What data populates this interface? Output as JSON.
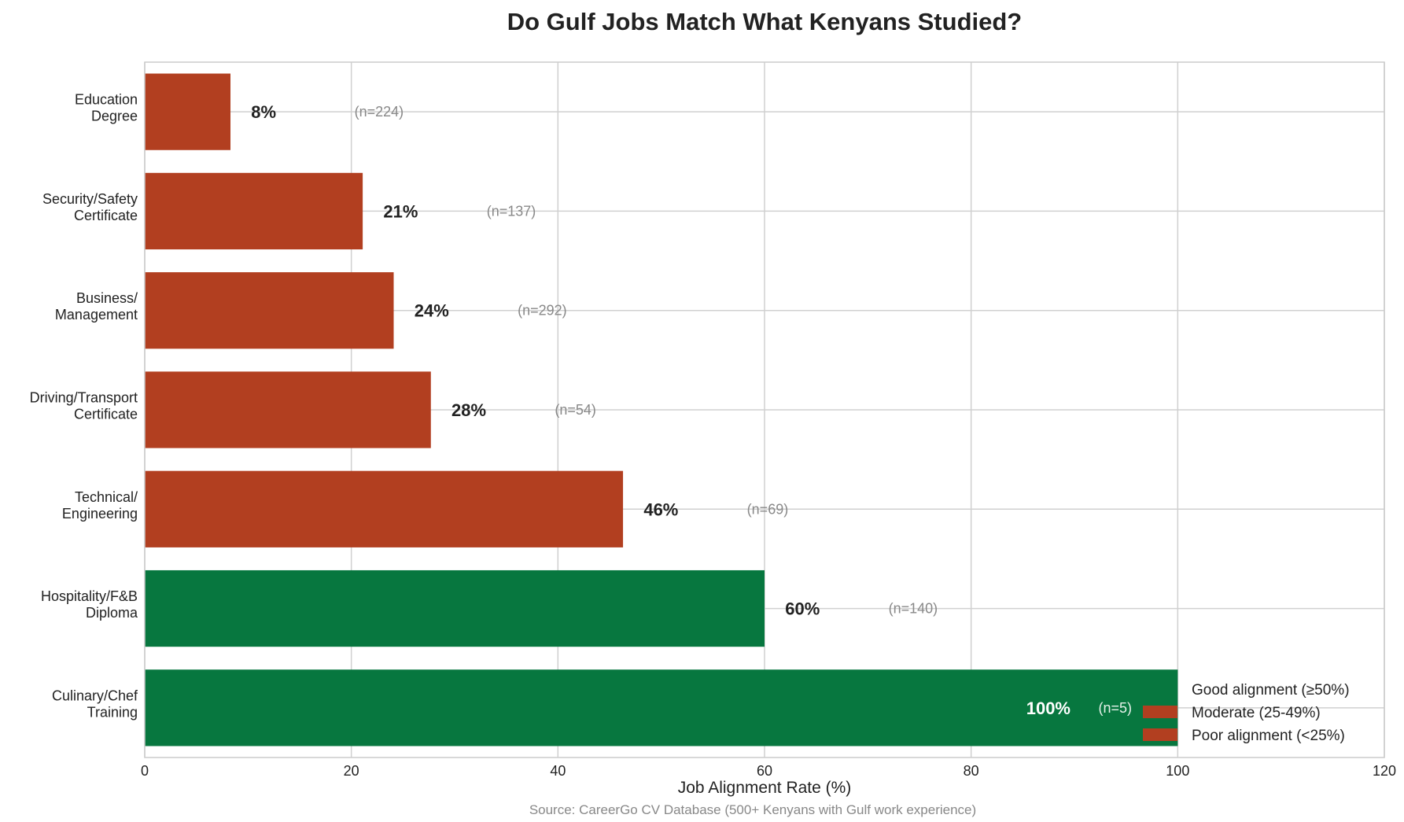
{
  "chart_data": {
    "type": "bar",
    "orientation": "horizontal",
    "title": "Do Gulf Jobs Match What Kenyans Studied?",
    "xlabel": "Job Alignment Rate (%)",
    "ylabel": "",
    "xlim": [
      0,
      120
    ],
    "xticks": [
      "0",
      "20",
      "40",
      "60",
      "80",
      "100",
      "120"
    ],
    "grid": true,
    "categories": [
      [
        "Education",
        "Degree"
      ],
      [
        "Security/Safety",
        "Certificate"
      ],
      [
        "Business/",
        "Management"
      ],
      [
        "Driving/Transport",
        "Certificate"
      ],
      [
        "Technical/",
        "Engineering"
      ],
      [
        "Hospitality/F&B",
        "Diploma"
      ],
      [
        "Culinary/Chef",
        "Training"
      ]
    ],
    "values": [
      8.3,
      21.1,
      24.1,
      27.7,
      46.3,
      60,
      100
    ],
    "value_labels": [
      "8%",
      "21%",
      "24%",
      "28%",
      "46%",
      "60%",
      "100%"
    ],
    "n_labels": [
      "(n=224)",
      "(n=137)",
      "(n=292)",
      "(n=54)",
      "(n=69)",
      "(n=140)",
      "(n=5)"
    ],
    "bar_colors": [
      "#b23f20",
      "#b23f20",
      "#b23f20",
      "#b23f20",
      "#b23f20",
      "#07773f",
      "#07773f"
    ],
    "legend": {
      "placement": "lower-right",
      "items": [
        {
          "label": "Good alignment (≥50%)",
          "color": "#07773f"
        },
        {
          "label": "Moderate (25-49%)",
          "color": "#b23f20"
        },
        {
          "label": "Poor alignment (<25%)",
          "color": "#b23f20"
        }
      ]
    },
    "source": "Source: CareerGo CV Database (500+ Kenyans with Gulf work experience)"
  }
}
